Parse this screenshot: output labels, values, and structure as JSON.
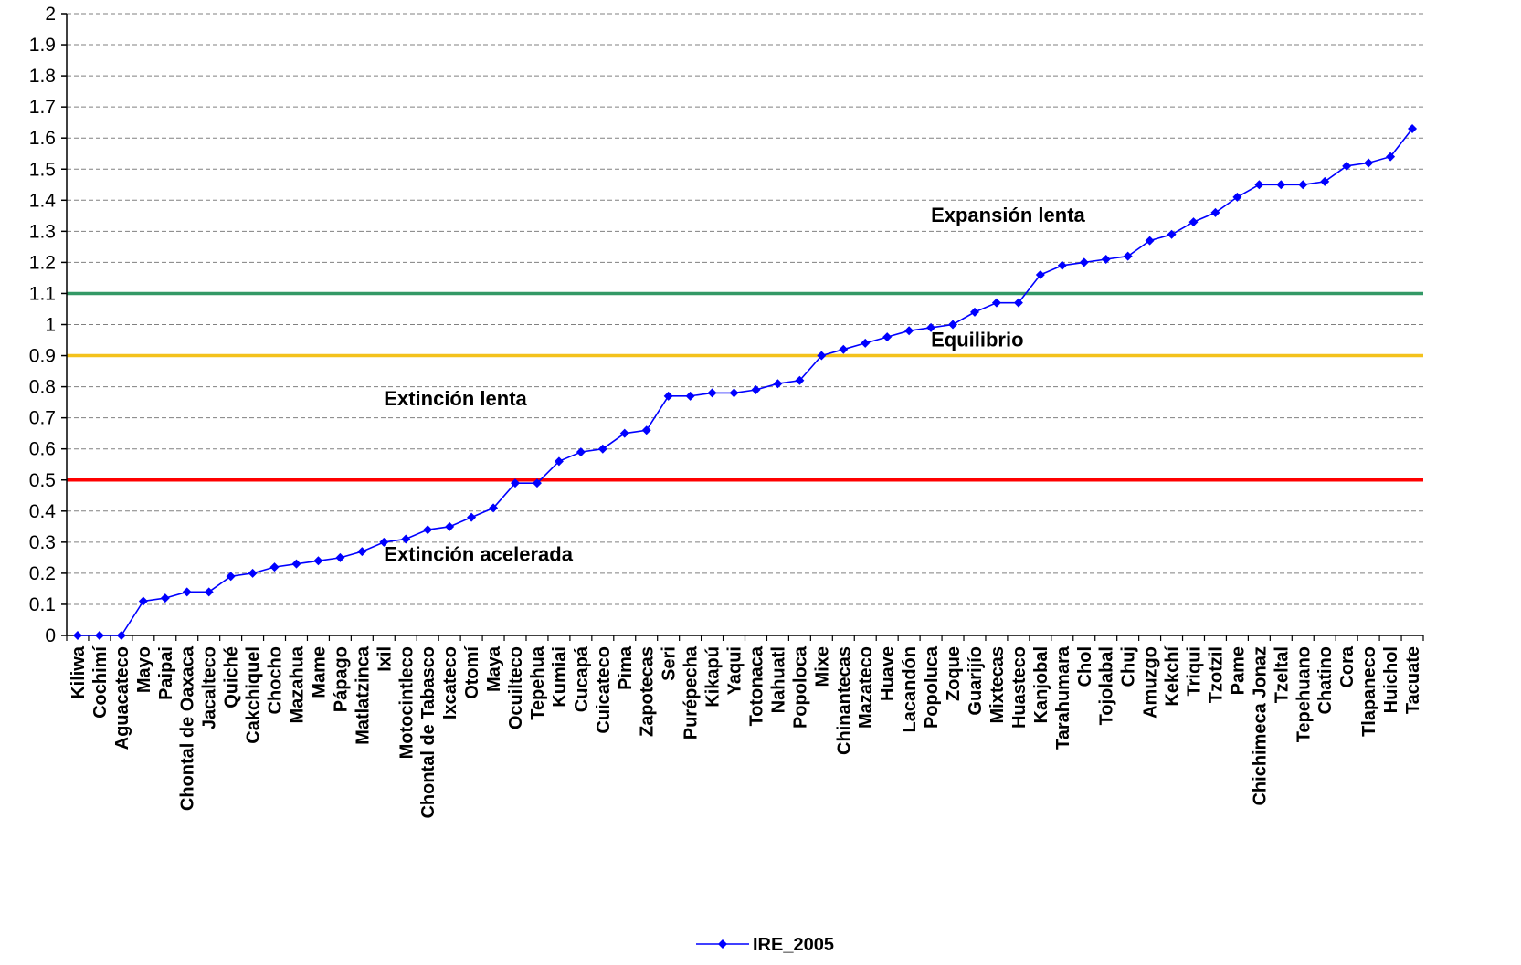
{
  "chart_data": {
    "type": "line",
    "ylim": [
      0,
      2
    ],
    "yticks": [
      "0",
      "0.1",
      "0.2",
      "0.3",
      "0.4",
      "0.5",
      "0.6",
      "0.7",
      "0.8",
      "0.9",
      "1",
      "1.1",
      "1.2",
      "1.3",
      "1.4",
      "1.5",
      "1.6",
      "1.7",
      "1.8",
      "1.9",
      "2"
    ],
    "ytick_values": [
      0,
      0.1,
      0.2,
      0.3,
      0.4,
      0.5,
      0.6,
      0.7,
      0.8,
      0.9,
      1,
      1.1,
      1.2,
      1.3,
      1.4,
      1.5,
      1.6,
      1.7,
      1.8,
      1.9,
      2
    ],
    "grid": true,
    "legend_position": "bottom",
    "categories": [
      "Kiliwa",
      "Cochimí",
      "Aguacateco",
      "Mayo",
      "Paipai",
      "Chontal de Oaxaca",
      "Jacalteco",
      "Quiché",
      "Cakchiquel",
      "Chocho",
      "Mazahua",
      "Mame",
      "Pápago",
      "Matlatzinca",
      "Ixil",
      "Motocintleco",
      "Chontal de Tabasco",
      "Ixcateco",
      "Otomí",
      "Maya",
      "Ocuilteco",
      "Tepehua",
      "Kumiai",
      "Cucapá",
      "Cuicateco",
      "Pima",
      "Zapotecas",
      "Seri",
      "Purépecha",
      "Kikapú",
      "Yaqui",
      "Totonaca",
      "Nahuatl",
      "Popoloca",
      "Mixe",
      "Chinantecas",
      "Mazateco",
      "Huave",
      "Lacandón",
      "Popoluca",
      "Zoque",
      "Guarijío",
      "Mixtecas",
      "Huasteco",
      "Kanjobal",
      "Tarahumara",
      "Chol",
      "Tojolabal",
      "Chuj",
      "Amuzgo",
      "Kekchí",
      "Triqui",
      "Tzotzil",
      "Pame",
      "Chichimeca Jonaz",
      "Tzeltal",
      "Tepehuano",
      "Chatino",
      "Cora",
      "Tlapaneco",
      "Huichol",
      "Tacuate"
    ],
    "series": [
      {
        "name": "IRE_2005",
        "color": "#0000ff",
        "marker": "diamond",
        "values": [
          0,
          0,
          0,
          0.11,
          0.12,
          0.14,
          0.14,
          0.19,
          0.2,
          0.22,
          0.23,
          0.24,
          0.25,
          0.27,
          0.3,
          0.31,
          0.34,
          0.35,
          0.38,
          0.41,
          0.49,
          0.49,
          0.56,
          0.59,
          0.6,
          0.65,
          0.66,
          0.77,
          0.77,
          0.78,
          0.78,
          0.79,
          0.81,
          0.82,
          0.9,
          0.92,
          0.94,
          0.96,
          0.98,
          0.99,
          1.0,
          1.04,
          1.07,
          1.07,
          1.16,
          1.19,
          1.2,
          1.21,
          1.22,
          1.27,
          1.29,
          1.33,
          1.36,
          1.41,
          1.45,
          1.45,
          1.45,
          1.46,
          1.51,
          1.52,
          1.54,
          1.63
        ]
      }
    ],
    "reference_lines": [
      {
        "value": 1.1,
        "color": "#339966"
      },
      {
        "value": 0.9,
        "color": "#f4c21c"
      },
      {
        "value": 0.5,
        "color": "#ff0000"
      }
    ],
    "annotations": [
      {
        "text": "Expansión lenta",
        "x_category": "Popoluca",
        "y": 1.33
      },
      {
        "text": "Equilibrio",
        "x_category": "Popoluca",
        "y": 0.93
      },
      {
        "text": "Extinción lenta",
        "x_category": "Ixil",
        "y": 0.74
      },
      {
        "text": "Extinción acelerada",
        "x_category": "Ixil",
        "y": 0.24
      }
    ]
  }
}
